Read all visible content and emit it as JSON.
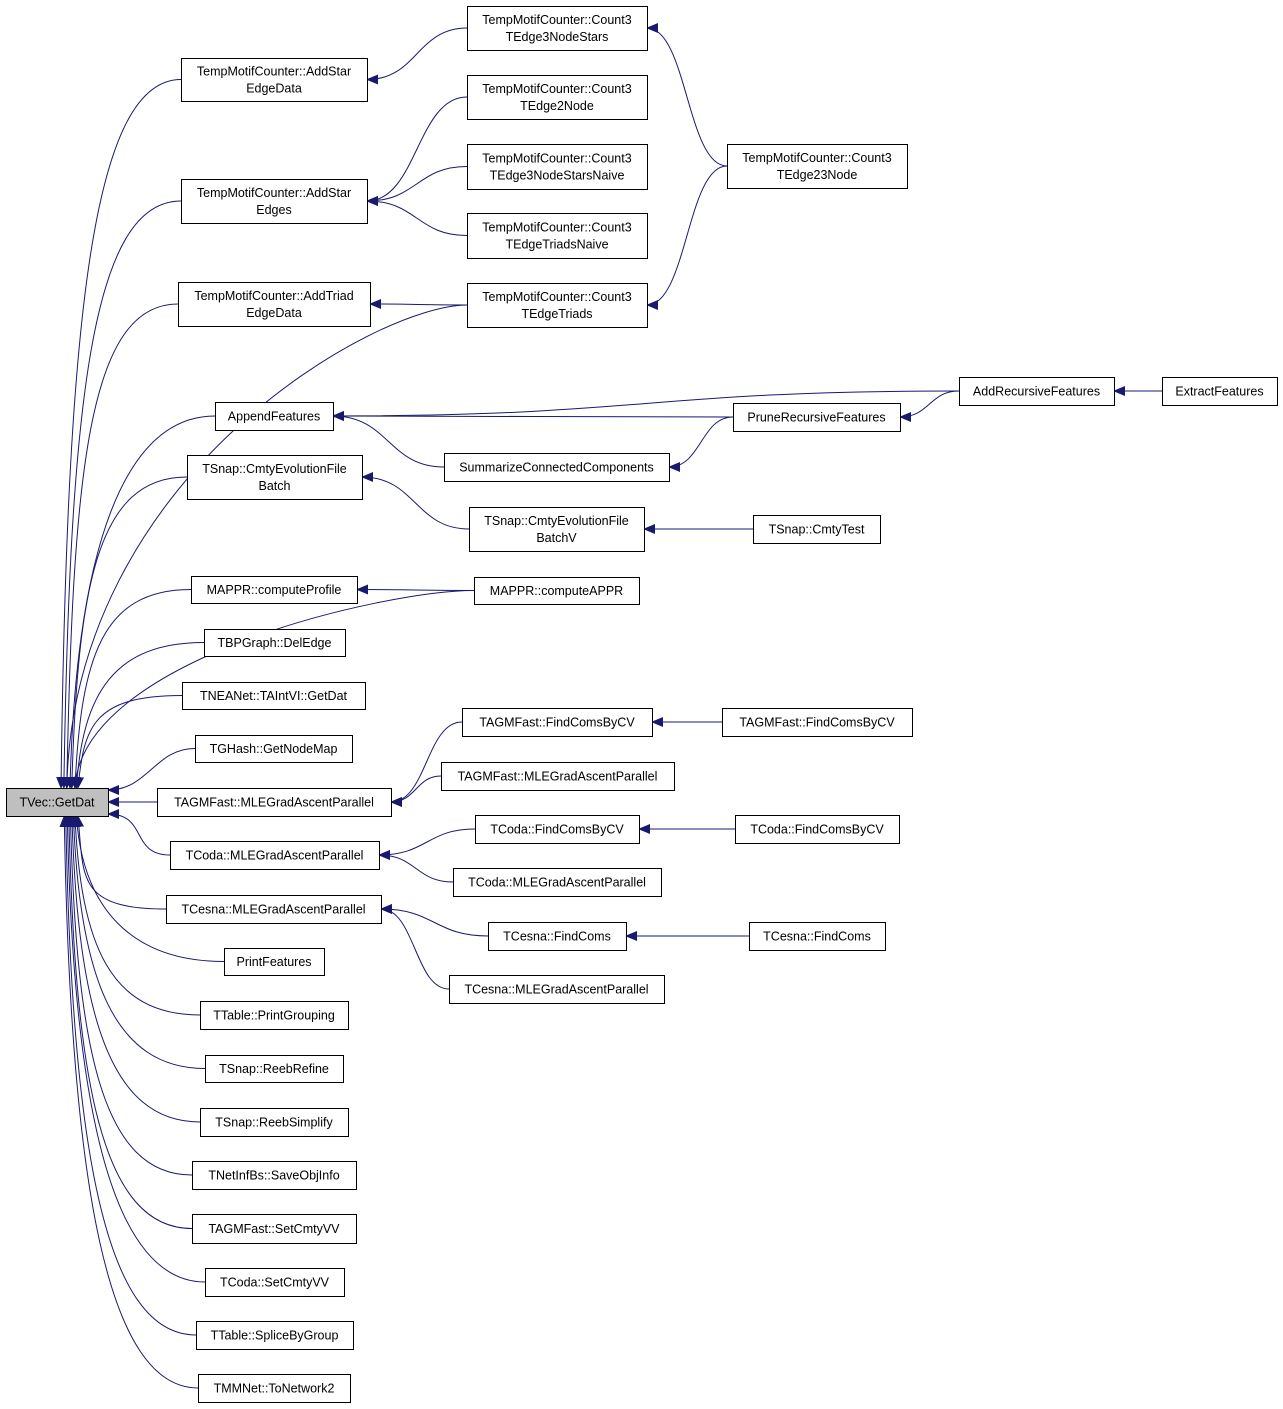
{
  "graph": {
    "root": "getdat",
    "edge_color": "#191970",
    "root_fill": "#bfbfbf",
    "nodes": {
      "getdat": [
        "TVec::GetDat"
      ],
      "addStarEdgeData": [
        "TempMotifCounter::AddStar",
        "EdgeData"
      ],
      "addStarEdges": [
        "TempMotifCounter::AddStar",
        "Edges"
      ],
      "addTriadEdgeData": [
        "TempMotifCounter::AddTriad",
        "EdgeData"
      ],
      "appendFeatures": [
        "AppendFeatures"
      ],
      "cmtyEvoBatch": [
        "TSnap::CmtyEvolutionFile",
        "Batch"
      ],
      "computeProfile": [
        "MAPPR::computeProfile"
      ],
      "delEdge": [
        "TBPGraph::DelEdge"
      ],
      "taintvl": [
        "TNEANet::TAIntVI::GetDat"
      ],
      "getNodeMap": [
        "TGHash::GetNodeMap"
      ],
      "agmMLE": [
        "TAGMFast::MLEGradAscentParallel"
      ],
      "codaMLE": [
        "TCoda::MLEGradAscentParallel"
      ],
      "cesnaMLE": [
        "TCesna::MLEGradAscentParallel"
      ],
      "printFeatures": [
        "PrintFeatures"
      ],
      "printGrouping": [
        "TTable::PrintGrouping"
      ],
      "reebRefine": [
        "TSnap::ReebRefine"
      ],
      "reebSimplify": [
        "TSnap::ReebSimplify"
      ],
      "saveObjInfo": [
        "TNetInfBs::SaveObjInfo"
      ],
      "agmSetCmty": [
        "TAGMFast::SetCmtyVV"
      ],
      "codaSetCmty": [
        "TCoda::SetCmtyVV"
      ],
      "spliceByGroup": [
        "TTable::SpliceByGroup"
      ],
      "toNetwork2": [
        "TMMNet::ToNetwork2"
      ],
      "count3stars": [
        "TempMotifCounter::Count3",
        "TEdge3NodeStars"
      ],
      "count2node": [
        "TempMotifCounter::Count3",
        "TEdge2Node"
      ],
      "count3starsNaive": [
        "TempMotifCounter::Count3",
        "TEdge3NodeStarsNaive"
      ],
      "triadsNaive": [
        "TempMotifCounter::Count3",
        "TEdgeTriadsNaive"
      ],
      "count3triads": [
        "TempMotifCounter::Count3",
        "TEdgeTriads"
      ],
      "summarize": [
        "SummarizeConnectedComponents"
      ],
      "cmtyEvoBatchV": [
        "TSnap::CmtyEvolutionFile",
        "BatchV"
      ],
      "computeAPPR": [
        "MAPPR::computeAPPR"
      ],
      "agmFindCV": [
        "TAGMFast::FindComsByCV"
      ],
      "agmMLE2": [
        "TAGMFast::MLEGradAscentParallel"
      ],
      "codaFindCV": [
        "TCoda::FindComsByCV"
      ],
      "codaMLE2": [
        "TCoda::MLEGradAscentParallel"
      ],
      "cesnaFindComs": [
        "TCesna::FindComs"
      ],
      "cesnaMLE2": [
        "TCesna::MLEGradAscentParallel"
      ],
      "count23node": [
        "TempMotifCounter::Count3",
        "TEdge23Node"
      ],
      "prune": [
        "PruneRecursiveFeatures"
      ],
      "cmtyTest": [
        "TSnap::CmtyTest"
      ],
      "agmFindCV2": [
        "TAGMFast::FindComsByCV"
      ],
      "codaFindCV2": [
        "TCoda::FindComsByCV"
      ],
      "cesnaFindComs2": [
        "TCesna::FindComs"
      ],
      "addRecursive": [
        "AddRecursiveFeatures"
      ],
      "extract": [
        "ExtractFeatures"
      ]
    },
    "edges": [
      [
        "addStarEdgeData",
        "getdat"
      ],
      [
        "addStarEdges",
        "getdat"
      ],
      [
        "addTriadEdgeData",
        "getdat"
      ],
      [
        "count3triads",
        "getdat"
      ],
      [
        "appendFeatures",
        "getdat"
      ],
      [
        "cmtyEvoBatch",
        "getdat"
      ],
      [
        "computeAPPR",
        "getdat"
      ],
      [
        "computeProfile",
        "getdat"
      ],
      [
        "delEdge",
        "getdat"
      ],
      [
        "taintvl",
        "getdat"
      ],
      [
        "getNodeMap",
        "getdat"
      ],
      [
        "agmMLE",
        "getdat"
      ],
      [
        "codaMLE",
        "getdat"
      ],
      [
        "cesnaMLE",
        "getdat"
      ],
      [
        "printFeatures",
        "getdat"
      ],
      [
        "printGrouping",
        "getdat"
      ],
      [
        "reebRefine",
        "getdat"
      ],
      [
        "reebSimplify",
        "getdat"
      ],
      [
        "saveObjInfo",
        "getdat"
      ],
      [
        "agmSetCmty",
        "getdat"
      ],
      [
        "codaSetCmty",
        "getdat"
      ],
      [
        "spliceByGroup",
        "getdat"
      ],
      [
        "toNetwork2",
        "getdat"
      ],
      [
        "count3stars",
        "addStarEdgeData"
      ],
      [
        "count2node",
        "addStarEdges"
      ],
      [
        "count3starsNaive",
        "addStarEdges"
      ],
      [
        "triadsNaive",
        "addStarEdges"
      ],
      [
        "count3triads",
        "addTriadEdgeData"
      ],
      [
        "count23node",
        "count3stars"
      ],
      [
        "count23node",
        "count3triads"
      ],
      [
        "addRecursive",
        "appendFeatures"
      ],
      [
        "prune",
        "appendFeatures"
      ],
      [
        "summarize",
        "appendFeatures"
      ],
      [
        "prune",
        "summarize"
      ],
      [
        "addRecursive",
        "prune"
      ],
      [
        "extract",
        "addRecursive"
      ],
      [
        "cmtyEvoBatchV",
        "cmtyEvoBatch"
      ],
      [
        "cmtyTest",
        "cmtyEvoBatchV"
      ],
      [
        "computeAPPR",
        "computeProfile"
      ],
      [
        "agmFindCV",
        "agmMLE"
      ],
      [
        "agmMLE2",
        "agmMLE"
      ],
      [
        "agmFindCV2",
        "agmFindCV"
      ],
      [
        "codaFindCV",
        "codaMLE"
      ],
      [
        "codaMLE2",
        "codaMLE"
      ],
      [
        "codaFindCV2",
        "codaFindCV"
      ],
      [
        "cesnaFindComs",
        "cesnaMLE"
      ],
      [
        "cesnaMLE2",
        "cesnaMLE"
      ],
      [
        "cesnaFindComs2",
        "cesnaFindComs"
      ]
    ]
  }
}
